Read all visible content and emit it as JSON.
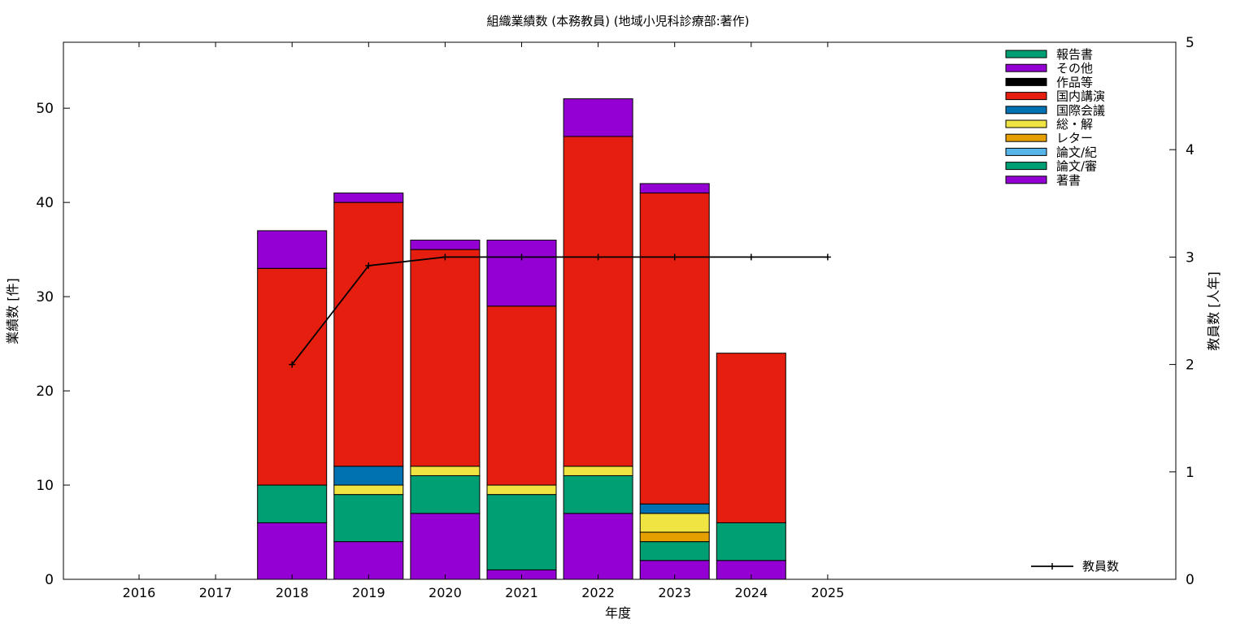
{
  "chart_data": {
    "type": "bar",
    "stacked": true,
    "title": "組織業績数 (本務教員) (地域小児科診療部:著作)",
    "xlabel": "年度",
    "ylabel": "業績数 [件]",
    "y2label": "教員数 [人年]",
    "categories": [
      "2016",
      "2017",
      "2018",
      "2019",
      "2020",
      "2021",
      "2022",
      "2023",
      "2024",
      "2025"
    ],
    "ylim": [
      0,
      57
    ],
    "yticks": [
      "0",
      "10",
      "20",
      "30",
      "40",
      "50"
    ],
    "y2lim": [
      0,
      5
    ],
    "y2ticks": [
      "0",
      "1",
      "2",
      "3",
      "4",
      "5"
    ],
    "grid": false,
    "legend_position": "top-right",
    "series": [
      {
        "name": "著書",
        "color": "#9400d3",
        "values": [
          0,
          0,
          6,
          4,
          7,
          1,
          7,
          2,
          2,
          0
        ]
      },
      {
        "name": "論文/審",
        "color": "#009e73",
        "values": [
          0,
          0,
          4,
          5,
          4,
          8,
          4,
          2,
          4,
          0
        ]
      },
      {
        "name": "論文/紀",
        "color": "#56b4e9",
        "values": [
          0,
          0,
          0,
          0,
          0,
          0,
          0,
          0,
          0,
          0
        ]
      },
      {
        "name": "レター",
        "color": "#e69f00",
        "values": [
          0,
          0,
          0,
          0,
          0,
          0,
          0,
          1,
          0,
          0
        ]
      },
      {
        "name": "総・解",
        "color": "#f0e442",
        "values": [
          0,
          0,
          0,
          1,
          1,
          1,
          1,
          2,
          0,
          0
        ]
      },
      {
        "name": "国際会議",
        "color": "#0072b2",
        "values": [
          0,
          0,
          0,
          2,
          0,
          0,
          0,
          1,
          0,
          0
        ]
      },
      {
        "name": "国内講演",
        "color": "#e51e10",
        "values": [
          0,
          0,
          23,
          28,
          23,
          19,
          35,
          33,
          18,
          0
        ]
      },
      {
        "name": "作品等",
        "color": "#000000",
        "values": [
          0,
          0,
          0,
          0,
          0,
          0,
          0,
          0,
          0,
          0
        ]
      },
      {
        "name": "その他",
        "color": "#9400d3",
        "values": [
          0,
          0,
          4,
          1,
          1,
          7,
          4,
          1,
          0,
          0
        ]
      },
      {
        "name": "報告書",
        "color": "#009e73",
        "values": [
          0,
          0,
          0,
          0,
          0,
          0,
          0,
          0,
          0,
          0
        ]
      }
    ],
    "legend_order": [
      "報告書",
      "その他",
      "作品等",
      "国内講演",
      "国際会議",
      "総・解",
      "レター",
      "論文/紀",
      "論文/審",
      "著書"
    ],
    "line_series": {
      "name": "教員数",
      "axis": "y2",
      "color": "#000000",
      "categories": [
        "2018",
        "2019",
        "2020",
        "2021",
        "2022",
        "2023",
        "2024",
        "2025"
      ],
      "values": [
        2,
        2.92,
        3,
        3,
        3,
        3,
        3,
        3
      ]
    }
  }
}
